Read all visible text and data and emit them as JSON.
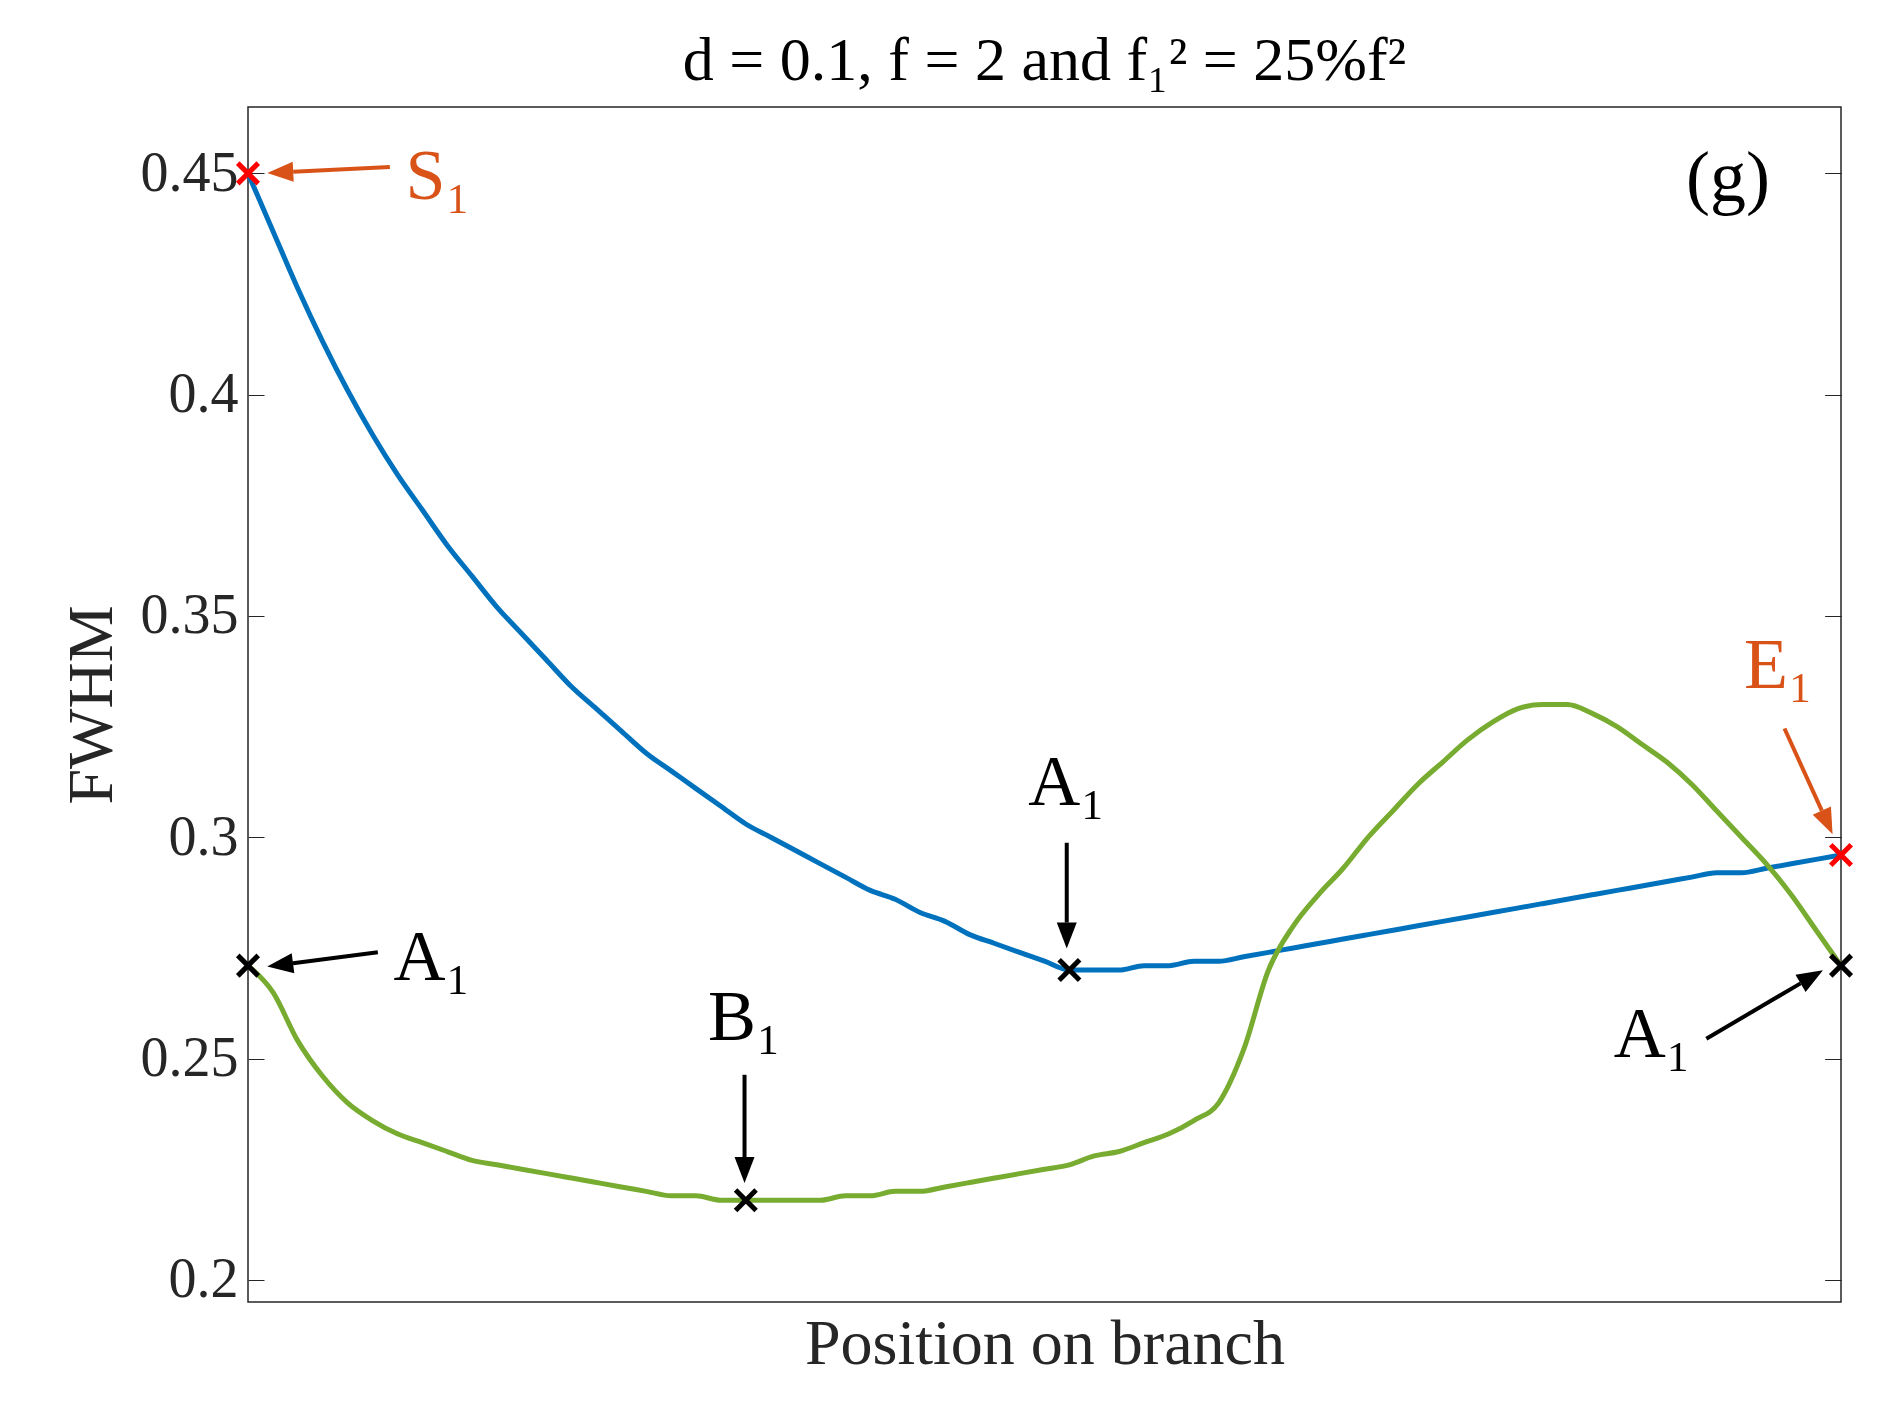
{
  "chart_data": {
    "type": "line",
    "title": "d = 0.1, f = 2 and f₁² = 25%f²",
    "xlabel": "Position on branch",
    "ylabel": "FWHM",
    "categories": [
      null,
      null,
      null,
      null,
      null,
      null,
      null,
      null,
      null,
      null,
      null,
      null,
      null,
      null,
      null,
      null,
      null,
      null,
      null,
      null,
      null,
      null,
      null,
      null,
      null,
      null,
      null,
      null,
      null,
      null,
      null,
      null,
      null,
      null,
      null,
      null,
      null,
      null,
      null,
      null,
      null,
      null,
      null,
      null,
      null,
      null,
      null,
      null,
      null,
      null,
      null,
      null,
      null,
      null,
      null,
      null,
      null,
      null,
      null,
      null,
      null,
      null,
      null,
      null,
      null
    ],
    "series": [
      {
        "color": "#0072bd",
        "values": [
          0.45,
          0.437,
          0.424,
          0.412,
          0.401,
          0.391,
          0.382,
          0.374,
          0.366,
          0.359,
          0.352,
          0.346,
          0.34,
          0.334,
          0.329,
          0.324,
          0.319,
          0.315,
          0.311,
          0.307,
          0.303,
          0.3,
          0.297,
          0.294,
          0.291,
          0.288,
          0.286,
          0.283,
          0.281,
          0.278,
          0.276,
          0.274,
          0.272,
          0.27,
          0.27,
          0.27,
          0.271,
          0.271,
          0.272,
          0.272,
          0.273,
          0.274,
          0.275,
          0.276,
          0.277,
          0.278,
          0.279,
          0.28,
          0.281,
          0.282,
          0.283,
          0.284,
          0.285,
          0.286,
          0.287,
          0.288,
          0.289,
          0.29,
          0.291,
          0.292,
          0.292,
          0.293,
          0.294,
          0.295,
          0.296
        ]
      },
      {
        "color": "#77ac30",
        "values": [
          0.271,
          0.265,
          0.254,
          0.246,
          0.24,
          0.236,
          0.233,
          0.231,
          0.229,
          0.227,
          0.226,
          0.225,
          0.224,
          0.223,
          0.222,
          0.221,
          0.22,
          0.219,
          0.219,
          0.218,
          0.218,
          0.218,
          0.218,
          0.218,
          0.219,
          0.219,
          0.22,
          0.22,
          0.221,
          0.222,
          0.223,
          0.224,
          0.225,
          0.226,
          0.228,
          0.229,
          0.231,
          0.233,
          0.236,
          0.24,
          0.252,
          0.27,
          0.28,
          0.287,
          0.293,
          0.3,
          0.306,
          0.312,
          0.317,
          0.322,
          0.326,
          0.329,
          0.33,
          0.33,
          0.328,
          0.325,
          0.321,
          0.317,
          0.312,
          0.306,
          0.3,
          0.294,
          0.287,
          0.279,
          0.271
        ]
      },
      {
        "type": "scatter",
        "marker": "cross",
        "color": "#ff0000",
        "values": [
          0.45,
          null,
          null,
          null,
          null,
          null,
          null,
          null,
          null,
          null,
          null,
          null,
          null,
          null,
          null,
          null,
          null,
          null,
          null,
          null,
          null,
          null,
          null,
          null,
          null,
          null,
          null,
          null,
          null,
          null,
          null,
          null,
          null,
          null,
          null,
          null,
          null,
          null,
          null,
          null,
          null,
          null,
          null,
          null,
          null,
          null,
          null,
          null,
          null,
          null,
          null,
          null,
          null,
          null,
          null,
          null,
          null,
          null,
          null,
          null,
          null,
          null,
          null,
          null,
          0.296
        ]
      },
      {
        "type": "scatter",
        "marker": "cross",
        "color": "#000000",
        "values": [
          0.271,
          null,
          null,
          null,
          null,
          null,
          null,
          null,
          null,
          null,
          null,
          null,
          null,
          null,
          null,
          null,
          null,
          null,
          null,
          null,
          0.218,
          null,
          null,
          null,
          null,
          null,
          null,
          null,
          null,
          null,
          null,
          null,
          null,
          0.27,
          null,
          null,
          null,
          null,
          null,
          null,
          null,
          null,
          null,
          null,
          null,
          null,
          null,
          null,
          null,
          null,
          null,
          null,
          null,
          null,
          null,
          null,
          null,
          null,
          null,
          null,
          null,
          null,
          null,
          null,
          0.271
        ]
      }
    ],
    "ylim": [
      0.195,
      0.465
    ],
    "yticks": [
      0.2,
      0.25,
      0.3,
      0.35,
      0.4,
      0.45
    ],
    "tick_labels": "y",
    "annotations": [
      "(g)",
      "S₁",
      "E₁",
      "A₁",
      "A₁",
      "B₁",
      "A₁"
    ]
  }
}
